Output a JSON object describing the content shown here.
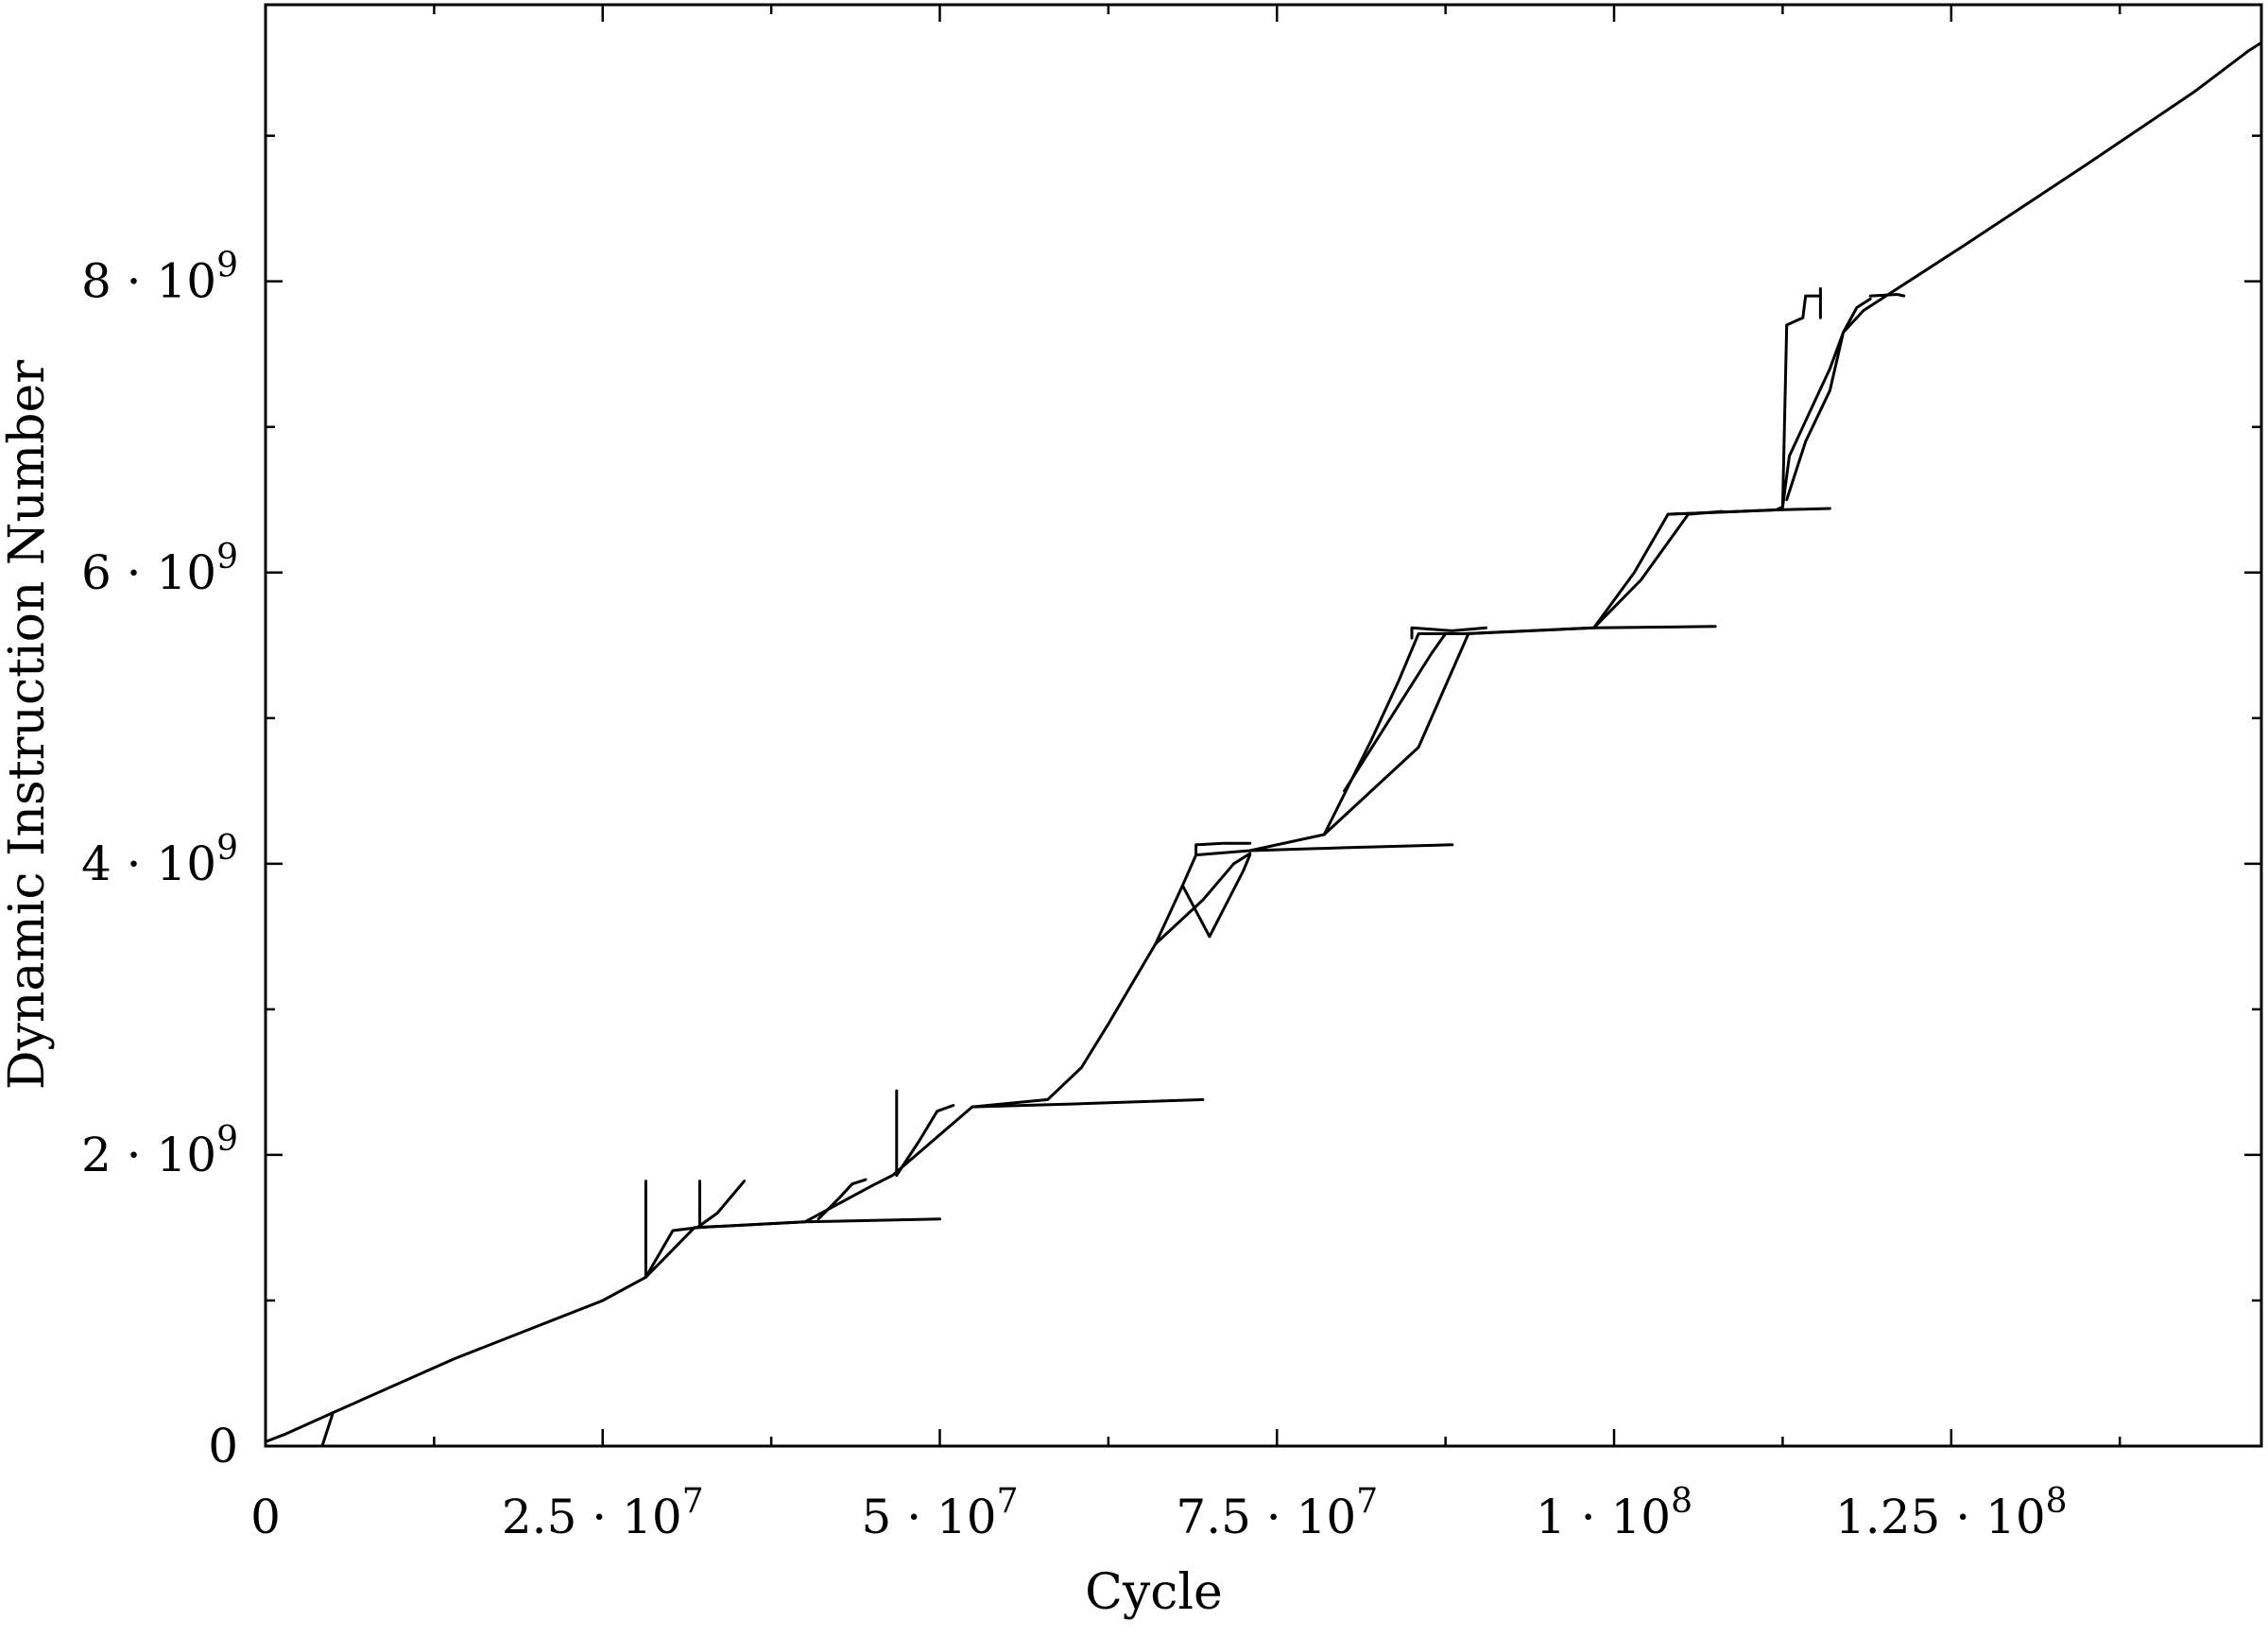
{
  "chart_data": {
    "type": "line",
    "title": "",
    "xlabel": "Cycle",
    "ylabel": "Dynamic Instruction Number",
    "xlim": [
      0,
      148000000
    ],
    "ylim": [
      0,
      9900000000
    ],
    "grid": false,
    "legend": "none",
    "x_ticks": [
      {
        "value": 0,
        "mantissa": "0",
        "exponent": ""
      },
      {
        "value": 25000000,
        "mantissa": "2.5 · 10",
        "exponent": "7"
      },
      {
        "value": 50000000,
        "mantissa": "5 · 10",
        "exponent": "7"
      },
      {
        "value": 75000000,
        "mantissa": "7.5 · 10",
        "exponent": "7"
      },
      {
        "value": 100000000,
        "mantissa": "1 · 10",
        "exponent": "8"
      },
      {
        "value": 125000000,
        "mantissa": "1.25 · 10",
        "exponent": "8"
      }
    ],
    "x_minor_ticks": [
      12500000,
      37500000,
      62500000,
      87500000,
      112500000,
      137500000
    ],
    "y_ticks": [
      {
        "value": 0,
        "mantissa": "0",
        "exponent": ""
      },
      {
        "value": 2000000000,
        "mantissa": "2 · 10",
        "exponent": "9"
      },
      {
        "value": 4000000000,
        "mantissa": "4 · 10",
        "exponent": "9"
      },
      {
        "value": 6000000000,
        "mantissa": "6 · 10",
        "exponent": "9"
      },
      {
        "value": 8000000000,
        "mantissa": "8 · 10",
        "exponent": "9"
      }
    ],
    "y_minor_ticks": [
      1000000000,
      3000000000,
      5000000000,
      7000000000,
      9000000000
    ],
    "series": [
      {
        "color": "#000000",
        "points": [
          [
            0,
            30000000
          ],
          [
            1400000,
            80000000
          ],
          [
            5000000,
            230000000
          ],
          [
            14000000,
            600000000
          ],
          [
            25000000,
            1000000000
          ],
          [
            28200000,
            1160000000
          ],
          [
            31800000,
            1500000000
          ],
          [
            40000000,
            1540000000
          ],
          [
            45000000,
            1790000000
          ],
          [
            46500000,
            1860000000
          ],
          [
            52400000,
            2330000000
          ],
          [
            58000000,
            2380000000
          ],
          [
            60500000,
            2600000000
          ],
          [
            62500000,
            2900000000
          ],
          [
            66000000,
            3450000000
          ],
          [
            68000000,
            3850000000
          ],
          [
            69000000,
            4060000000
          ],
          [
            73000000,
            4090000000
          ],
          [
            78500000,
            4200000000
          ],
          [
            82000000,
            4850000000
          ],
          [
            84000000,
            5250000000
          ],
          [
            85500000,
            5580000000
          ],
          [
            89000000,
            5580000000
          ],
          [
            98500000,
            5620000000
          ],
          [
            101500000,
            6000000000
          ],
          [
            104000000,
            6400000000
          ],
          [
            112000000,
            6430000000
          ],
          [
            112500000,
            6450000000
          ],
          [
            113000000,
            6800000000
          ],
          [
            114500000,
            7100000000
          ],
          [
            116000000,
            7400000000
          ],
          [
            117000000,
            7650000000
          ],
          [
            118500000,
            7800000000
          ],
          [
            120500000,
            7920000000
          ],
          [
            126000000,
            8250000000
          ],
          [
            135000000,
            8800000000
          ],
          [
            143000000,
            9300000000
          ],
          [
            147000000,
            9580000000
          ],
          [
            148000000,
            9640000000
          ]
        ]
      },
      {
        "color": "#000000",
        "points": [
          [
            1800000,
            0
          ],
          [
            4200000,
            0
          ],
          [
            5000000,
            230000000
          ]
        ]
      },
      {
        "color": "#000000",
        "points": [
          [
            28200000,
            1160000000
          ],
          [
            28200000,
            1820000000
          ]
        ]
      },
      {
        "color": "#000000",
        "points": [
          [
            28200000,
            1160000000
          ],
          [
            30200000,
            1480000000
          ],
          [
            32000000,
            1500000000
          ],
          [
            33500000,
            1600000000
          ],
          [
            35500000,
            1820000000
          ]
        ]
      },
      {
        "color": "#000000",
        "points": [
          [
            32200000,
            1500000000
          ],
          [
            32200000,
            1820000000
          ]
        ]
      },
      {
        "color": "#000000",
        "points": [
          [
            31800000,
            1500000000
          ],
          [
            40000000,
            1540000000
          ],
          [
            50000000,
            1560000000
          ]
        ]
      },
      {
        "color": "#000000",
        "points": [
          [
            41000000,
            1560000000
          ],
          [
            42500000,
            1700000000
          ],
          [
            43500000,
            1800000000
          ],
          [
            44500000,
            1830000000
          ]
        ]
      },
      {
        "color": "#000000",
        "points": [
          [
            46800000,
            1860000000
          ],
          [
            46800000,
            2440000000
          ]
        ]
      },
      {
        "color": "#000000",
        "points": [
          [
            46800000,
            1860000000
          ],
          [
            48500000,
            2100000000
          ],
          [
            49800000,
            2300000000
          ],
          [
            51000000,
            2340000000
          ]
        ]
      },
      {
        "color": "#000000",
        "points": [
          [
            52400000,
            2330000000
          ],
          [
            60000000,
            2350000000
          ],
          [
            69500000,
            2380000000
          ]
        ]
      },
      {
        "color": "#000000",
        "points": [
          [
            68000000,
            3850000000
          ],
          [
            70000000,
            3500000000
          ],
          [
            72500000,
            3950000000
          ],
          [
            73000000,
            4060000000
          ]
        ]
      },
      {
        "color": "#000000",
        "points": [
          [
            66000000,
            3450000000
          ],
          [
            69500000,
            3750000000
          ],
          [
            71800000,
            4000000000
          ],
          [
            73000000,
            4070000000
          ]
        ]
      },
      {
        "color": "#000000",
        "points": [
          [
            69000000,
            4060000000
          ],
          [
            69000000,
            4130000000
          ],
          [
            71000000,
            4140000000
          ],
          [
            73000000,
            4140000000
          ]
        ]
      },
      {
        "color": "#000000",
        "points": [
          [
            73000000,
            4090000000
          ],
          [
            80000000,
            4110000000
          ],
          [
            88000000,
            4130000000
          ]
        ]
      },
      {
        "color": "#000000",
        "points": [
          [
            78500000,
            4200000000
          ],
          [
            85500000,
            4800000000
          ],
          [
            89200000,
            5580000000
          ]
        ]
      },
      {
        "color": "#000000",
        "points": [
          [
            80000000,
            4500000000
          ],
          [
            86500000,
            5450000000
          ],
          [
            87500000,
            5580000000
          ]
        ]
      },
      {
        "color": "#000000",
        "points": [
          [
            85000000,
            5550000000
          ],
          [
            85000000,
            5620000000
          ],
          [
            88000000,
            5600000000
          ],
          [
            90500000,
            5620000000
          ]
        ]
      },
      {
        "color": "#000000",
        "points": [
          [
            89000000,
            5580000000
          ],
          [
            98500000,
            5620000000
          ],
          [
            107500000,
            5630000000
          ]
        ]
      },
      {
        "color": "#000000",
        "points": [
          [
            98500000,
            5620000000
          ],
          [
            102000000,
            5950000000
          ],
          [
            105500000,
            6400000000
          ],
          [
            108000000,
            6420000000
          ]
        ]
      },
      {
        "color": "#000000",
        "points": [
          [
            104000000,
            6400000000
          ],
          [
            112000000,
            6430000000
          ],
          [
            116000000,
            6440000000
          ]
        ]
      },
      {
        "color": "#000000",
        "points": [
          [
            112500000,
            6450000000
          ],
          [
            112800000,
            7700000000
          ],
          [
            114000000,
            7750000000
          ],
          [
            114200000,
            7900000000
          ],
          [
            115300000,
            7900000000
          ]
        ]
      },
      {
        "color": "#000000",
        "points": [
          [
            112800000,
            6500000000
          ],
          [
            114200000,
            6900000000
          ],
          [
            116000000,
            7250000000
          ],
          [
            117000000,
            7650000000
          ]
        ]
      },
      {
        "color": "#000000",
        "points": [
          [
            115300000,
            7750000000
          ],
          [
            115300000,
            7950000000
          ]
        ]
      },
      {
        "color": "#000000",
        "points": [
          [
            117000000,
            7650000000
          ],
          [
            118000000,
            7820000000
          ],
          [
            119000000,
            7880000000
          ]
        ]
      },
      {
        "color": "#000000",
        "points": [
          [
            119000000,
            7900000000
          ],
          [
            121000000,
            7910000000
          ],
          [
            121500000,
            7900000000
          ]
        ]
      }
    ]
  }
}
